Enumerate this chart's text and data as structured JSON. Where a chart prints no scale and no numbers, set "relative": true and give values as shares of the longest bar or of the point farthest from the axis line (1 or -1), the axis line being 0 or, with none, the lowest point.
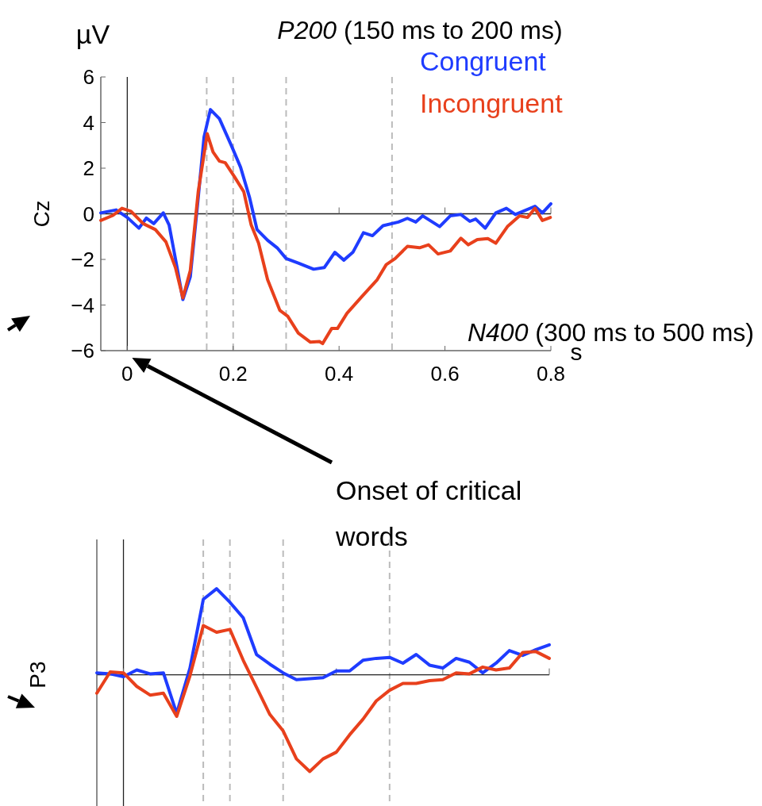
{
  "chart_data": [
    {
      "type": "line",
      "ylabel": "Cz",
      "xlabel": "s",
      "xlim": [
        -0.05,
        0.8
      ],
      "xticks": [
        0,
        0.2,
        0.4,
        0.6,
        0.8
      ],
      "ylim": [
        -6,
        6
      ],
      "yticks": [
        -6,
        -4,
        -2,
        0,
        2,
        4,
        6
      ],
      "legend": "top right",
      "line_style": "solid",
      "annotations": [
        "µV",
        "P200 (150 ms to 200 ms)",
        "N400 (300 ms to 500 ms)",
        "Onset of critical words"
      ],
      "ref_lines": [
        {
          "axis": "y",
          "value": 0,
          "color": "#222222",
          "line_style": "solid"
        },
        {
          "axis": "x",
          "value": 0,
          "color": "#222222",
          "line_style": "solid"
        },
        {
          "axis": "x",
          "value": 0.15,
          "color": "#bbbbbb",
          "line_style": "dashed"
        },
        {
          "axis": "x",
          "value": 0.2,
          "color": "#bbbbbb",
          "line_style": "dashed"
        },
        {
          "axis": "x",
          "value": 0.3,
          "color": "#bbbbbb",
          "line_style": "dashed"
        },
        {
          "axis": "x",
          "value": 0.5,
          "color": "#bbbbbb",
          "line_style": "dashed"
        }
      ],
      "series": [
        {
          "name": "Congruent",
          "color": "#1f3cff",
          "x": [
            -0.05,
            -0.021,
            0,
            0.022,
            0.036,
            0.05,
            0.068,
            0.079,
            0.093,
            0.105,
            0.119,
            0.134,
            0.145,
            0.157,
            0.174,
            0.197,
            0.214,
            0.231,
            0.245,
            0.265,
            0.283,
            0.3,
            0.323,
            0.352,
            0.372,
            0.392,
            0.409,
            0.426,
            0.446,
            0.463,
            0.483,
            0.512,
            0.529,
            0.545,
            0.558,
            0.59,
            0.61,
            0.63,
            0.647,
            0.658,
            0.676,
            0.696,
            0.716,
            0.733,
            0.77,
            0.784,
            0.8
          ],
          "values": [
            0.04,
            0.17,
            -0.16,
            -0.63,
            -0.19,
            -0.43,
            0.04,
            -0.49,
            -2.23,
            -3.76,
            -2.76,
            0.71,
            3.37,
            4.57,
            4.17,
            2.97,
            2.04,
            0.71,
            -0.69,
            -1.16,
            -1.49,
            -1.96,
            -2.16,
            -2.43,
            -2.36,
            -1.69,
            -2.03,
            -1.69,
            -0.83,
            -0.96,
            -0.52,
            -0.36,
            -0.2,
            -0.36,
            -0.09,
            -0.56,
            -0.09,
            -0.03,
            -0.33,
            -0.23,
            -0.63,
            0.04,
            0.24,
            -0.03,
            0.33,
            0.04,
            0.44
          ]
        },
        {
          "name": "Incongruent",
          "color": "#e8401c",
          "x": [
            -0.05,
            -0.027,
            -0.01,
            0.007,
            0.03,
            0.053,
            0.073,
            0.091,
            0.105,
            0.119,
            0.134,
            0.151,
            0.162,
            0.174,
            0.185,
            0.202,
            0.22,
            0.234,
            0.248,
            0.265,
            0.288,
            0.303,
            0.323,
            0.346,
            0.363,
            0.369,
            0.386,
            0.397,
            0.415,
            0.443,
            0.472,
            0.489,
            0.506,
            0.529,
            0.552,
            0.569,
            0.587,
            0.61,
            0.63,
            0.644,
            0.661,
            0.681,
            0.696,
            0.718,
            0.741,
            0.756,
            0.77,
            0.784,
            0.799
          ],
          "values": [
            -0.29,
            -0.07,
            0.24,
            0.11,
            -0.43,
            -0.69,
            -1.23,
            -2.36,
            -3.69,
            -2.49,
            0.97,
            3.51,
            2.71,
            2.31,
            2.24,
            1.64,
            0.97,
            -0.49,
            -1.29,
            -2.89,
            -4.23,
            -4.49,
            -5.23,
            -5.63,
            -5.6,
            -5.69,
            -5.03,
            -5.03,
            -4.36,
            -3.63,
            -2.89,
            -2.23,
            -1.96,
            -1.43,
            -1.49,
            -1.36,
            -1.76,
            -1.63,
            -1.07,
            -1.36,
            -1.13,
            -1.09,
            -1.29,
            -0.56,
            -0.09,
            -0.16,
            0.24,
            -0.29,
            -0.16
          ]
        }
      ]
    },
    {
      "type": "line",
      "ylabel": "P3",
      "relative": true,
      "line_style": "solid",
      "grid": "x",
      "categories": [
        null,
        null,
        null,
        null,
        null,
        null,
        null,
        null,
        null,
        null,
        null,
        null,
        null,
        null,
        null,
        null,
        null,
        null,
        null,
        null,
        null,
        null,
        null,
        null,
        null,
        null,
        null,
        null,
        null,
        null,
        null,
        null,
        null,
        null,
        null
      ],
      "series": [
        {
          "color": "#1f3cff",
          "values": [
            0.02,
            0.01,
            -0.02,
            0.05,
            0.01,
            0.02,
            -0.4,
            0.07,
            0.78,
            0.89,
            0.75,
            0.59,
            0.21,
            0.11,
            0.02,
            -0.05,
            -0.04,
            -0.03,
            0.04,
            0.04,
            0.15,
            0.17,
            0.18,
            0.12,
            0.21,
            0.1,
            0.07,
            0.17,
            0.13,
            0.02,
            0.12,
            0.25,
            0.2,
            0.26,
            0.31
          ]
        },
        {
          "color": "#e8401c",
          "values": [
            -0.19,
            0.03,
            0.02,
            -0.12,
            -0.21,
            -0.19,
            -0.43,
            -0.01,
            0.51,
            0.44,
            0.47,
            0.15,
            -0.13,
            -0.41,
            -0.58,
            -0.87,
            -1,
            -0.87,
            -0.8,
            -0.62,
            -0.46,
            -0.27,
            -0.16,
            -0.09,
            -0.09,
            -0.06,
            -0.05,
            0.02,
            0.01,
            0.08,
            0.05,
            0.07,
            0.23,
            0.24,
            0.17
          ]
        }
      ]
    }
  ]
}
